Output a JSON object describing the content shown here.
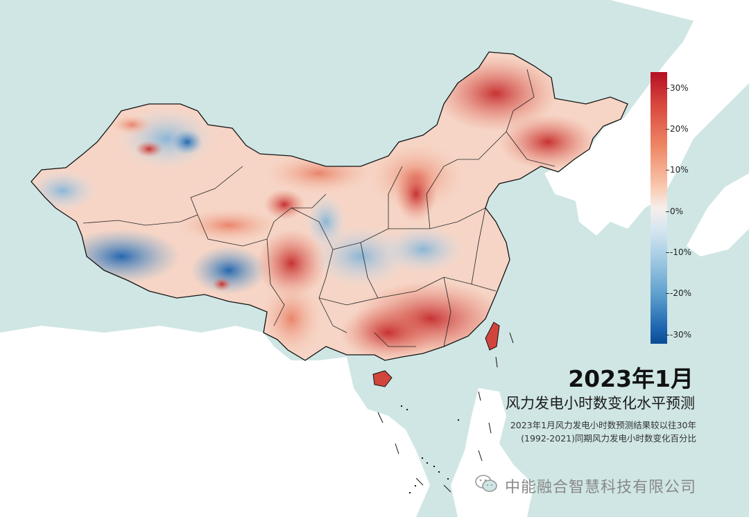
{
  "title": "2023年1月",
  "subtitle": "风力发电小时数变化水平预测",
  "description": {
    "line1": "2023年1月风力发电小时数预测结果较以往30年",
    "line2": "(1992-2021)同期风力发电小时数变化百分比"
  },
  "legend": {
    "ticks": [
      "30%",
      "20%",
      "10%",
      "0%",
      "-10%",
      "-20%",
      "-30%"
    ],
    "high_color": "#b40f24",
    "mid_color": "#f7eeea",
    "low_color": "#0b4b96"
  },
  "watermark": {
    "icon": "wechat-icon",
    "text": "中能融合智慧科技有限公司"
  },
  "colors": {
    "sea": "#cfe6e4",
    "land": "#ffffff",
    "border": "#111111"
  }
}
